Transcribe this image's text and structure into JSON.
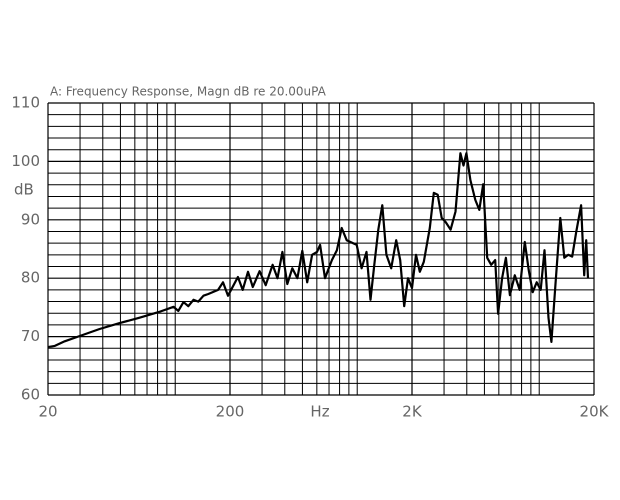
{
  "chart_data": {
    "type": "line",
    "title": "A: Frequency Response, Magn dB re 20.00uPA",
    "ylabel": "dB",
    "xlabel": "Hz",
    "xscale": "log",
    "color": "#000000",
    "grid": true,
    "xlim": [
      20,
      20000
    ],
    "ylim": [
      60,
      110
    ],
    "xticks": [
      20,
      200,
      {
        "value": 2000,
        "label": "2K"
      },
      {
        "value": 20000,
        "label": "20K"
      }
    ],
    "x_minor_ticks": [
      30,
      40,
      50,
      60,
      70,
      80,
      90,
      100,
      300,
      400,
      500,
      600,
      700,
      800,
      900,
      1000,
      3000,
      4000,
      5000,
      6000,
      7000,
      8000,
      9000,
      10000
    ],
    "yticks": [
      60,
      70,
      80,
      90,
      100,
      110
    ],
    "y_minor_ticks": [
      62,
      64,
      66,
      68,
      72,
      74,
      76,
      78,
      82,
      84,
      86,
      88,
      92,
      94,
      96,
      98,
      102,
      104,
      106,
      108
    ],
    "x": [
      20,
      21.8,
      24.7,
      29.9,
      38.4,
      49.2,
      63,
      81,
      98,
      104,
      111,
      118,
      126,
      134,
      143,
      152,
      172,
      183,
      195,
      221,
      235,
      251,
      267,
      291,
      314,
      343,
      365,
      388,
      413,
      440,
      469,
      499,
      531,
      565,
      601,
      625,
      665,
      726,
      773,
      822,
      875,
      993,
      1057,
      1125,
      1183,
      1242,
      1306,
      1374,
      1446,
      1538,
      1637,
      1722,
      1811,
      1901,
      2000,
      2104,
      2208,
      2323,
      2506,
      2636,
      2767,
      2911,
      3062,
      3258,
      3467,
      3690,
      3837,
      3981,
      4188,
      4457,
      4688,
      4920,
      5176,
      5445,
      5728,
      5944,
      6252,
      6562,
      6902,
      7345,
      7816,
      8337,
      8750,
      9205,
      9683,
      10186,
      10691,
      11246,
      11668,
      12275,
      13062,
      13741,
      14456,
      15171,
      15959,
      16983,
      17660,
      18113,
      18535
    ],
    "values": [
      68.2,
      68.4,
      69.2,
      70.1,
      71.3,
      72.3,
      73.2,
      74.2,
      75.1,
      74.4,
      75.9,
      75.2,
      76.3,
      76.0,
      77.0,
      77.3,
      78.0,
      79.3,
      77.0,
      80.2,
      78.0,
      81.1,
      78.5,
      81.2,
      78.8,
      82.3,
      80.0,
      84.5,
      79.0,
      81.7,
      80.0,
      84.7,
      79.3,
      84.0,
      84.5,
      85.7,
      80.0,
      83.1,
      84.8,
      88.6,
      86.5,
      85.7,
      81.7,
      84.5,
      76.3,
      82.3,
      88.3,
      92.5,
      84.0,
      81.7,
      86.5,
      83.1,
      75.2,
      80.0,
      78.3,
      84.0,
      81.1,
      82.8,
      88.6,
      94.6,
      94.3,
      90.3,
      89.6,
      88.3,
      91.4,
      101.4,
      99.3,
      101.4,
      96.8,
      93.4,
      91.7,
      96.1,
      83.5,
      82.3,
      83.1,
      73.9,
      80.0,
      83.5,
      77.1,
      80.5,
      78.0,
      86.2,
      81.4,
      77.6,
      79.3,
      78.0,
      84.8,
      73.2,
      69.1,
      78.8,
      90.3,
      83.5,
      84.0,
      83.7,
      87.9,
      92.5,
      80.5,
      86.5,
      80.0
    ]
  }
}
